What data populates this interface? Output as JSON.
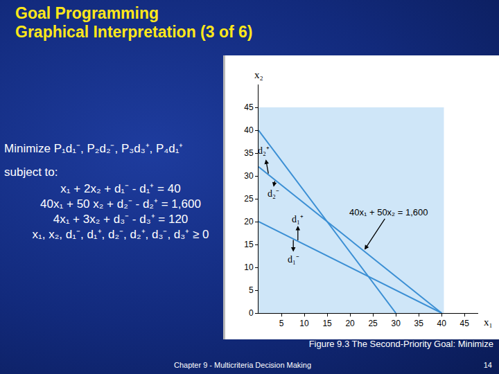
{
  "slide": {
    "title": [
      "Goal Programming",
      "Graphical Interpretation (3 of 6)"
    ],
    "objective": "Minimize  P₁d₁⁻, P₂d₂⁻, P₃d₃⁺, P₄d₁⁺",
    "subject_to": "subject to:",
    "constraints": [
      "x₁ + 2x₂ + d₁⁻ - d₁⁺ = 40",
      "40x₁ + 50 x₂ + d₂⁻ - d₂⁺ = 1,600",
      "4x₁ + 3x₂ + d₃⁻ - d₃⁺ = 120",
      "x₁, x₂, d₁⁻, d₁⁺, d₂⁻, d₂⁺, d₃⁻, d₃⁺ ≥ 0"
    ],
    "footer": "Chapter 9 - Multicriteria Decision Making",
    "page": "14"
  },
  "chart_data": {
    "type": "line",
    "title": "Figure 9.3  The Second-Priority Goal: Minimize",
    "x_label": "x₁",
    "y_label": "x₂",
    "xlim": [
      0,
      48
    ],
    "ylim": [
      0,
      50
    ],
    "xticks": [
      5,
      10,
      15,
      20,
      25,
      30,
      35,
      40,
      45
    ],
    "yticks": [
      0,
      5,
      10,
      15,
      20,
      25,
      30,
      35,
      40,
      45
    ],
    "grid": false,
    "shaded_region": {
      "x": [
        0,
        40.5
      ],
      "y": [
        0,
        45
      ],
      "color": "#cfe6f8"
    },
    "series": [
      {
        "x": [
          0,
          40
        ],
        "values": [
          20,
          0
        ],
        "color": "#3b8fd4"
      },
      {
        "x": [
          0,
          40
        ],
        "values": [
          32,
          0
        ],
        "color": "#3b8fd4"
      },
      {
        "x": [
          0,
          30
        ],
        "values": [
          40,
          0
        ],
        "color": "#3b8fd4"
      }
    ],
    "labels": [
      {
        "text": "d₂⁺",
        "x": 1.2,
        "y": 35.5,
        "arrow_from": [
          2.2,
          30.3
        ],
        "arrow_to": [
          1.6,
          33.6
        ]
      },
      {
        "text": "d₂⁻",
        "x": 3.2,
        "y": 26.2,
        "arrow_from": [
          3.6,
          29.1
        ],
        "arrow_to": [
          3.3,
          27.6
        ]
      },
      {
        "text": "d₁⁺",
        "x": 8.6,
        "y": 20.6,
        "arrow_from": [
          8.6,
          15.7
        ],
        "arrow_to": [
          8.6,
          19.1
        ]
      },
      {
        "text": "d₁⁻",
        "x": 7.6,
        "y": 11.8,
        "arrow_from": [
          7.6,
          16.2
        ],
        "arrow_to": [
          7.6,
          13.4
        ]
      }
    ],
    "equation": {
      "text": "40x₁ + 50x₂ = 1,600",
      "x": 28.5,
      "y": 22,
      "arrow_to": [
        23,
        13.6
      ]
    }
  }
}
